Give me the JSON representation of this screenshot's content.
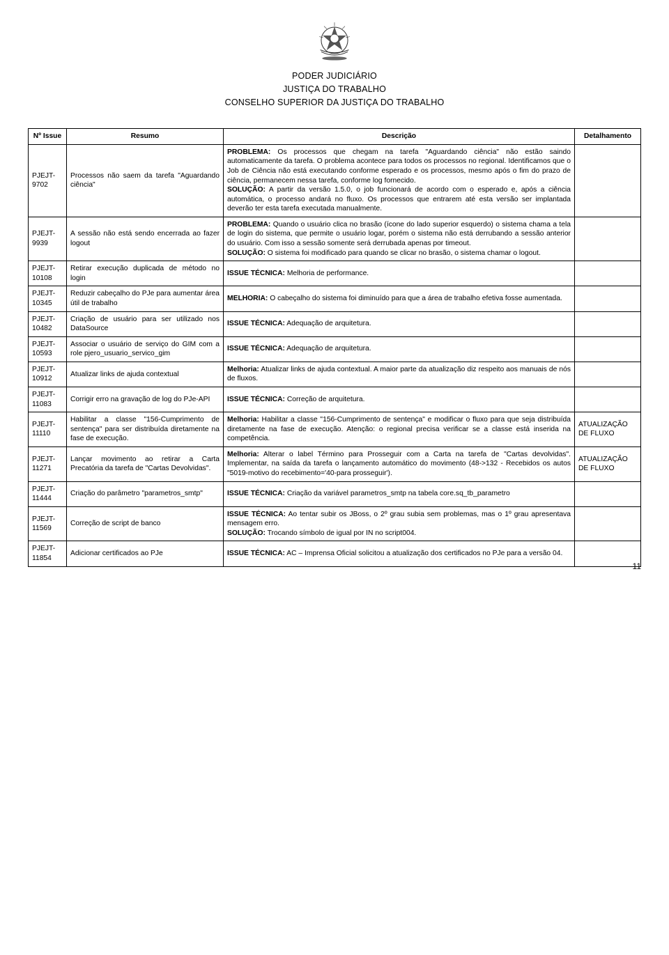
{
  "header": {
    "line1": "PODER JUDICIÁRIO",
    "line2": "JUSTIÇA DO TRABALHO",
    "line3": "CONSELHO SUPERIOR DA JUSTIÇA DO TRABALHO"
  },
  "columns": {
    "c1": "Nº Issue",
    "c2": "Resumo",
    "c3": "Descrição",
    "c4": "Detalhamento"
  },
  "rows": [
    {
      "issue": "PJEJT-9702",
      "resumo": "Processos não saem da tarefa \"Aguardando ciência\"",
      "desc": "<b>PROBLEMA:</b> Os processos que chegam na tarefa \"Aguardando ciência\" não estão saindo automaticamente da tarefa. O problema acontece para todos os processos no regional. Identificamos que o Job de Ciência não está executando conforme esperado e os processos, mesmo após o fim do prazo de ciência, permanecem nessa tarefa, conforme log fornecido.<br><b>SOLUÇÃO:</b> A partir da versão 1.5.0, o job funcionará de acordo com o esperado e, após a ciência automática, o processo andará no fluxo. Os processos que entrarem até esta versão ser implantada deverão ter esta tarefa executada manualmente.",
      "det": ""
    },
    {
      "issue": "PJEJT-9939",
      "resumo": "A sessão não está sendo encerrada ao fazer logout",
      "desc": "<b>PROBLEMA:</b> Quando o usuário clica no brasão (ícone do lado superior esquerdo) o sistema chama a tela de login do sistema, que permite o usuário logar, porém o sistema não está derrubando a sessão anterior do usuário. Com isso a sessão somente será derrubada apenas por timeout.<br><b>SOLUÇÃO:</b> O sistema foi modificado para quando se clicar no brasão, o sistema chamar o logout.",
      "det": ""
    },
    {
      "issue": "PJEJT-10108",
      "resumo": "Retirar execução duplicada de método no login",
      "desc": "<b>ISSUE TÉCNICA:</b> Melhoria de performance.",
      "det": ""
    },
    {
      "issue": "PJEJT-10345",
      "resumo": "Reduzir cabeçalho do PJe para aumentar área útil de trabalho",
      "desc": "<b>MELHORIA:</b> O cabeçalho do sistema foi diminuído para que a área de trabalho efetiva fosse aumentada.",
      "det": ""
    },
    {
      "issue": "PJEJT-10482",
      "resumo": "Criação de usuário para ser utilizado nos DataSource",
      "desc": "<b>ISSUE TÉCNICA:</b> Adequação de arquitetura.",
      "det": ""
    },
    {
      "issue": "PJEJT-10593",
      "resumo": "Associar o usuário de serviço do GIM com a role pjero_usuario_servico_gim",
      "desc": "<b>ISSUE TÉCNICA:</b> Adequação de arquitetura.",
      "det": ""
    },
    {
      "issue": "PJEJT-10912",
      "resumo": "Atualizar links de ajuda contextual",
      "desc": "<b>Melhoria:</b> Atualizar links de ajuda contextual. A maior parte da atualização diz respeito aos manuais de nós de fluxos.",
      "det": ""
    },
    {
      "issue": "PJEJT-11083",
      "resumo": "Corrigir erro na gravação de log do PJe-API",
      "desc": "<b>ISSUE TÉCNICA:</b> Correção de arquitetura.",
      "det": ""
    },
    {
      "issue": "PJEJT-11110",
      "resumo": "Habilitar a classe \"156-Cumprimento de sentença\" para ser distribuída diretamente na fase de execução.",
      "desc": "<b>Melhoria:</b> Habilitar a classe \"156-Cumprimento de sentença\" e modificar o fluxo para que seja distribuída diretamente na fase de execução. Atenção: o regional precisa verificar se a classe está inserida na competência.",
      "det": "ATUALIZAÇÃO DE FLUXO"
    },
    {
      "issue": "PJEJT-11271",
      "resumo": "Lançar movimento ao retirar a Carta Precatória da tarefa de \"Cartas Devolvidas\".",
      "desc": "<b>Melhoria:</b> Alterar o label Término para Prosseguir com a Carta na tarefa de \"Cartas devolvidas\". Implementar, na saída da tarefa o lançamento automático do movimento (48->132 - Recebidos os autos \"5019-motivo do recebimento='40-para prosseguir').",
      "det": "ATUALIZAÇÃO DE FLUXO"
    },
    {
      "issue": "PJEJT-11444",
      "resumo": "Criação do parâmetro \"parametros_smtp\"",
      "desc": "<b>ISSUE TÉCNICA:</b> Criação da variável parametros_smtp na tabela core.sq_tb_parametro",
      "det": ""
    },
    {
      "issue": "PJEJT-11569",
      "resumo": "Correção de script de banco",
      "desc": "<b>ISSUE TÉCNICA:</b> Ao tentar subir os JBoss, o 2º grau subia sem problemas, mas o 1º grau apresentava mensagem erro.<br><b>SOLUÇÃO:</b> Trocando símbolo de igual por IN no script004.",
      "det": ""
    },
    {
      "issue": "PJEJT-11854",
      "resumo": "Adicionar certificados ao PJe",
      "desc": "<b>ISSUE TÉCNICA:</b> AC – Imprensa Oficial solicitou a atualização dos certificados no PJe para a versão 04.",
      "det": ""
    }
  ],
  "pageNumber": "11"
}
